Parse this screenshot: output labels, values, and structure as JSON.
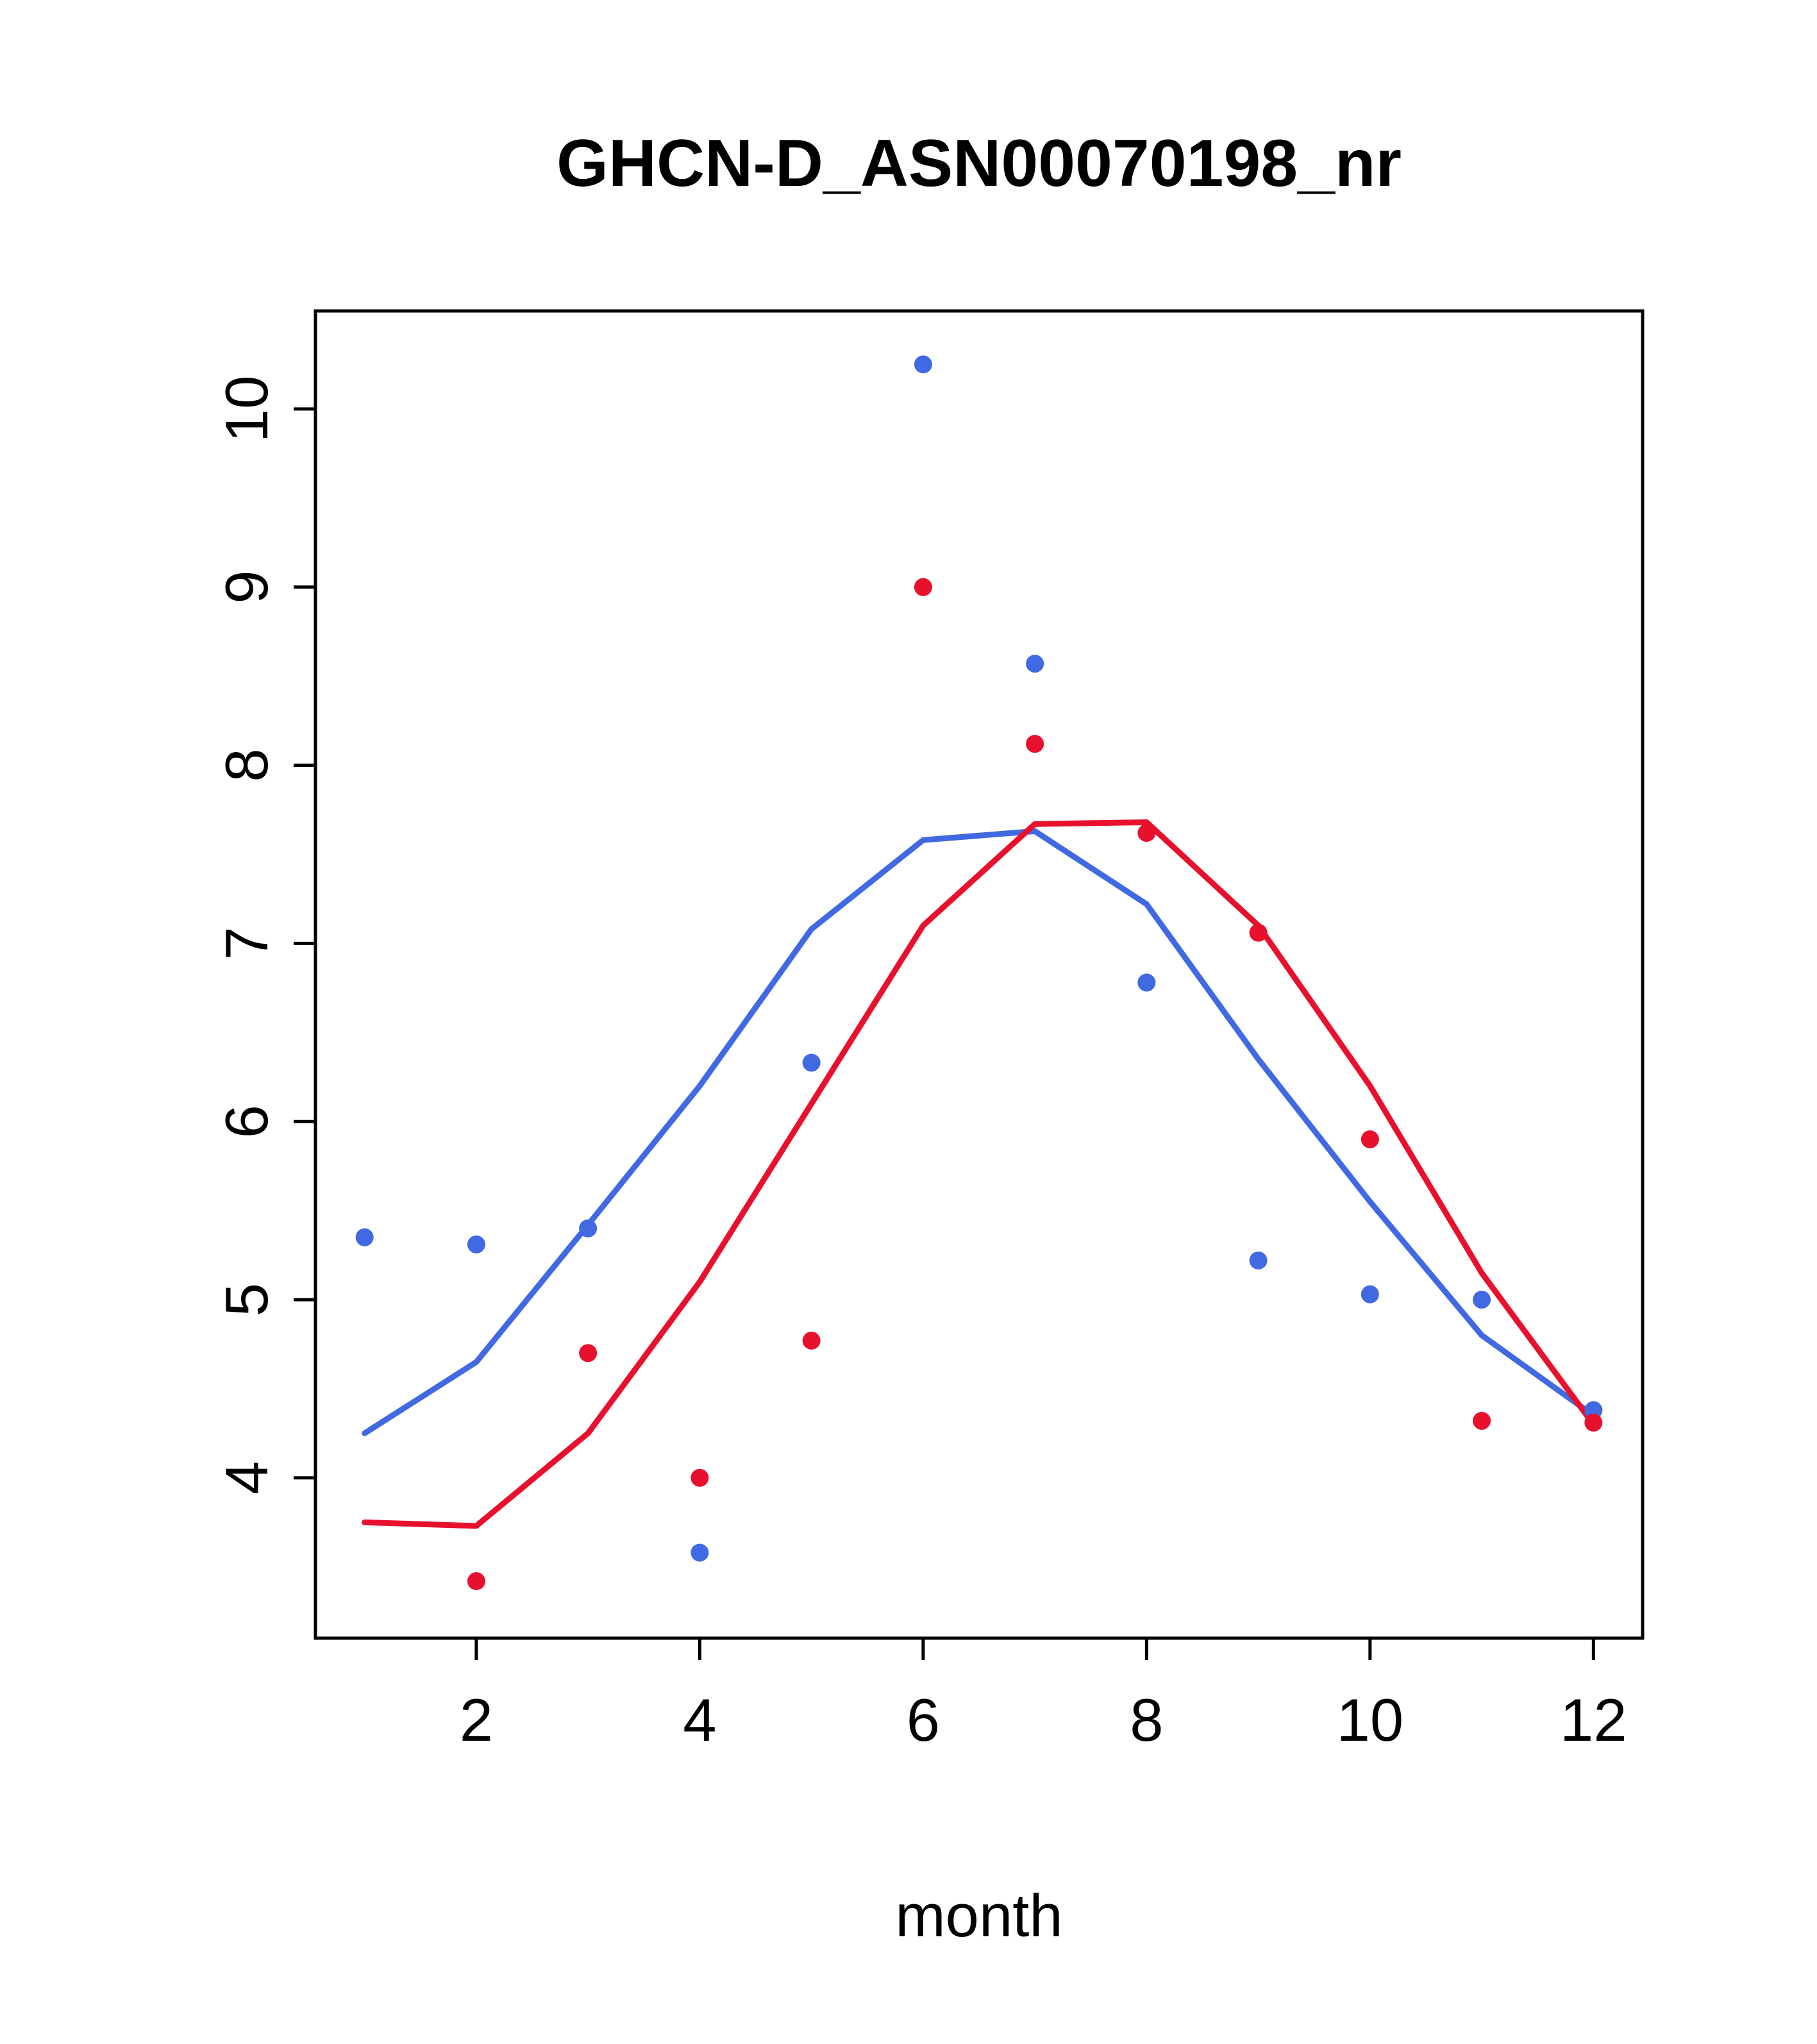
{
  "chart_data": {
    "type": "scatter",
    "title": "GHCN-D_ASN00070198_nr",
    "xlabel": "month",
    "ylabel": "",
    "xlim": [
      0.56,
      12.44
    ],
    "ylim": [
      3.1,
      10.55
    ],
    "xticks": [
      2,
      4,
      6,
      8,
      10,
      12
    ],
    "yticks": [
      4,
      5,
      6,
      7,
      8,
      9,
      10
    ],
    "grid": "off",
    "legend": "none",
    "colors": {
      "blue": "#4169E1",
      "red": "#E8112D",
      "axis": "#000000"
    },
    "series": [
      {
        "name": "blue-smooth-line",
        "type": "line",
        "color": "#4169E1",
        "x": [
          1,
          2,
          3,
          4,
          5,
          6,
          7,
          8,
          9,
          10,
          11,
          12
        ],
        "y": [
          4.25,
          4.65,
          5.42,
          6.2,
          7.08,
          7.58,
          7.63,
          7.22,
          6.35,
          5.55,
          4.8,
          4.35
        ]
      },
      {
        "name": "red-smooth-line",
        "type": "line",
        "color": "#E8112D",
        "x": [
          1,
          2,
          3,
          4,
          5,
          6,
          7,
          8,
          9,
          10,
          11,
          12
        ],
        "y": [
          3.75,
          3.73,
          4.25,
          5.1,
          6.1,
          7.1,
          7.67,
          7.68,
          7.1,
          6.2,
          5.15,
          4.3
        ]
      },
      {
        "name": "blue-points",
        "type": "points",
        "color": "#4169E1",
        "x": [
          1,
          2,
          3,
          4,
          5,
          6,
          7,
          8,
          9,
          10,
          11,
          12
        ],
        "y": [
          5.35,
          5.31,
          5.4,
          3.58,
          6.33,
          10.25,
          8.57,
          6.78,
          5.22,
          5.03,
          5.0,
          4.38
        ]
      },
      {
        "name": "red-points",
        "type": "points",
        "color": "#E8112D",
        "x": [
          2,
          3,
          4,
          5,
          6,
          7,
          8,
          9,
          10,
          11,
          12
        ],
        "y": [
          3.42,
          4.7,
          4.0,
          4.77,
          9.0,
          8.12,
          7.62,
          7.06,
          5.9,
          4.32,
          4.31
        ]
      }
    ]
  }
}
